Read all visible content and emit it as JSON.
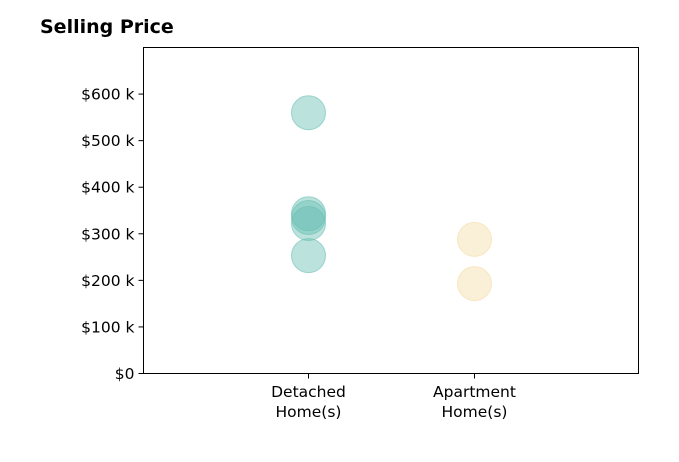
{
  "chart_data": {
    "type": "scatter",
    "title": "Selling Price",
    "xlabel": "",
    "ylabel": "",
    "categories": [
      {
        "lines": [
          "Detached",
          "Home(s)"
        ]
      },
      {
        "lines": [
          "Apartment",
          "Home(s)"
        ]
      }
    ],
    "series": [
      {
        "category_index": 0,
        "color": "#69bfb3",
        "values": [
          560000,
          343000,
          335000,
          322000,
          253000
        ]
      },
      {
        "category_index": 1,
        "color": "#f5dca7",
        "values": [
          288000,
          193000
        ]
      }
    ],
    "ylim": [
      0,
      700000
    ],
    "yticks": [
      {
        "value": 0,
        "label": "$0"
      },
      {
        "value": 100000,
        "label": "$100 k"
      },
      {
        "value": 200000,
        "label": "$200 k"
      },
      {
        "value": 300000,
        "label": "$300 k"
      },
      {
        "value": 400000,
        "label": "$400 k"
      },
      {
        "value": 500000,
        "label": "$500 k"
      },
      {
        "value": 600000,
        "label": "$600 k"
      }
    ],
    "grid": false,
    "legend": "none"
  }
}
